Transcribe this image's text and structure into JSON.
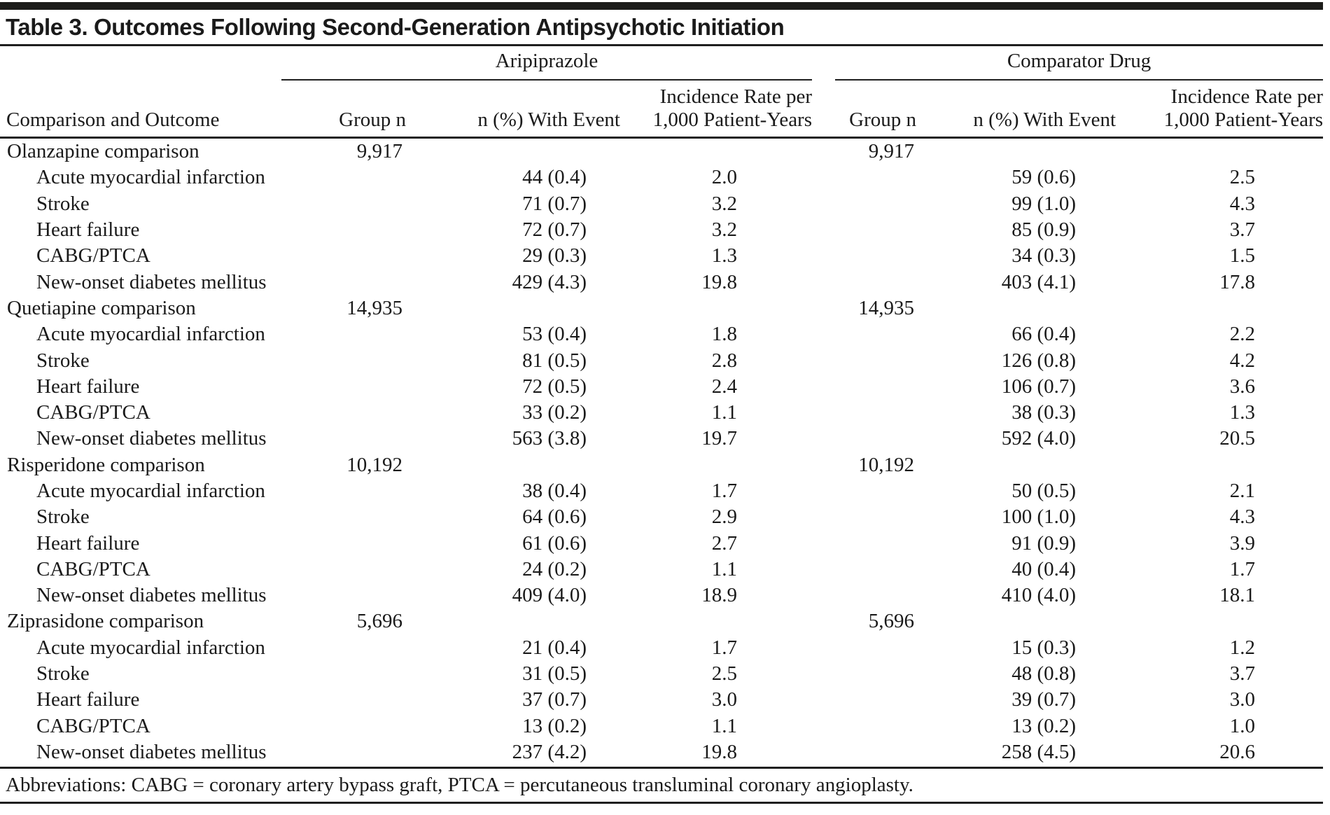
{
  "title": "Table 3. Outcomes Following Second-Generation Antipsychotic Initiation",
  "table": {
    "row_header": "Comparison and Outcome",
    "group_headers": [
      {
        "label": "Aripiprazole"
      },
      {
        "label": "Comparator Drug"
      }
    ],
    "column_headers": {
      "group_n": "Group n",
      "with_event": "n (%) With Event",
      "incidence_line1": "Incidence Rate per",
      "incidence_line2": "1,000 Patient-Years"
    },
    "sections": [
      {
        "label": "Olanzapine comparison",
        "group_n": "9,917",
        "rows": [
          {
            "outcome": "Acute myocardial infarction",
            "a_event": "44 (0.4)",
            "a_rate": "2.0",
            "c_event": "59 (0.6)",
            "c_rate": "2.5"
          },
          {
            "outcome": "Stroke",
            "a_event": "71 (0.7)",
            "a_rate": "3.2",
            "c_event": "99 (1.0)",
            "c_rate": "4.3"
          },
          {
            "outcome": "Heart failure",
            "a_event": "72 (0.7)",
            "a_rate": "3.2",
            "c_event": "85 (0.9)",
            "c_rate": "3.7"
          },
          {
            "outcome": "CABG/PTCA",
            "a_event": "29 (0.3)",
            "a_rate": "1.3",
            "c_event": "34 (0.3)",
            "c_rate": "1.5"
          },
          {
            "outcome": "New-onset diabetes mellitus",
            "a_event": "429 (4.3)",
            "a_rate": "19.8",
            "c_event": "403 (4.1)",
            "c_rate": "17.8"
          }
        ]
      },
      {
        "label": "Quetiapine comparison",
        "group_n": "14,935",
        "rows": [
          {
            "outcome": "Acute myocardial infarction",
            "a_event": "53 (0.4)",
            "a_rate": "1.8",
            "c_event": "66 (0.4)",
            "c_rate": "2.2"
          },
          {
            "outcome": "Stroke",
            "a_event": "81 (0.5)",
            "a_rate": "2.8",
            "c_event": "126 (0.8)",
            "c_rate": "4.2"
          },
          {
            "outcome": "Heart failure",
            "a_event": "72 (0.5)",
            "a_rate": "2.4",
            "c_event": "106 (0.7)",
            "c_rate": "3.6"
          },
          {
            "outcome": "CABG/PTCA",
            "a_event": "33 (0.2)",
            "a_rate": "1.1",
            "c_event": "38 (0.3)",
            "c_rate": "1.3"
          },
          {
            "outcome": "New-onset diabetes mellitus",
            "a_event": "563 (3.8)",
            "a_rate": "19.7",
            "c_event": "592 (4.0)",
            "c_rate": "20.5"
          }
        ]
      },
      {
        "label": "Risperidone comparison",
        "group_n": "10,192",
        "rows": [
          {
            "outcome": "Acute myocardial infarction",
            "a_event": "38 (0.4)",
            "a_rate": "1.7",
            "c_event": "50 (0.5)",
            "c_rate": "2.1"
          },
          {
            "outcome": "Stroke",
            "a_event": "64 (0.6)",
            "a_rate": "2.9",
            "c_event": "100 (1.0)",
            "c_rate": "4.3"
          },
          {
            "outcome": "Heart failure",
            "a_event": "61 (0.6)",
            "a_rate": "2.7",
            "c_event": "91 (0.9)",
            "c_rate": "3.9"
          },
          {
            "outcome": "CABG/PTCA",
            "a_event": "24 (0.2)",
            "a_rate": "1.1",
            "c_event": "40 (0.4)",
            "c_rate": "1.7"
          },
          {
            "outcome": "New-onset diabetes mellitus",
            "a_event": "409 (4.0)",
            "a_rate": "18.9",
            "c_event": "410 (4.0)",
            "c_rate": "18.1"
          }
        ]
      },
      {
        "label": "Ziprasidone comparison",
        "group_n": "5,696",
        "rows": [
          {
            "outcome": "Acute myocardial infarction",
            "a_event": "21 (0.4)",
            "a_rate": "1.7",
            "c_event": "15 (0.3)",
            "c_rate": "1.2"
          },
          {
            "outcome": "Stroke",
            "a_event": "31 (0.5)",
            "a_rate": "2.5",
            "c_event": "48 (0.8)",
            "c_rate": "3.7"
          },
          {
            "outcome": "Heart failure",
            "a_event": "37 (0.7)",
            "a_rate": "3.0",
            "c_event": "39 (0.7)",
            "c_rate": "3.0"
          },
          {
            "outcome": "CABG/PTCA",
            "a_event": "13 (0.2)",
            "a_rate": "1.1",
            "c_event": "13 (0.2)",
            "c_rate": "1.0"
          },
          {
            "outcome": "New-onset diabetes mellitus",
            "a_event": "237 (4.2)",
            "a_rate": "19.8",
            "c_event": "258 (4.5)",
            "c_rate": "20.6"
          }
        ]
      }
    ]
  },
  "footnote": "Abbreviations: CABG = coronary artery bypass graft, PTCA = percutaneous transluminal coronary angioplasty."
}
